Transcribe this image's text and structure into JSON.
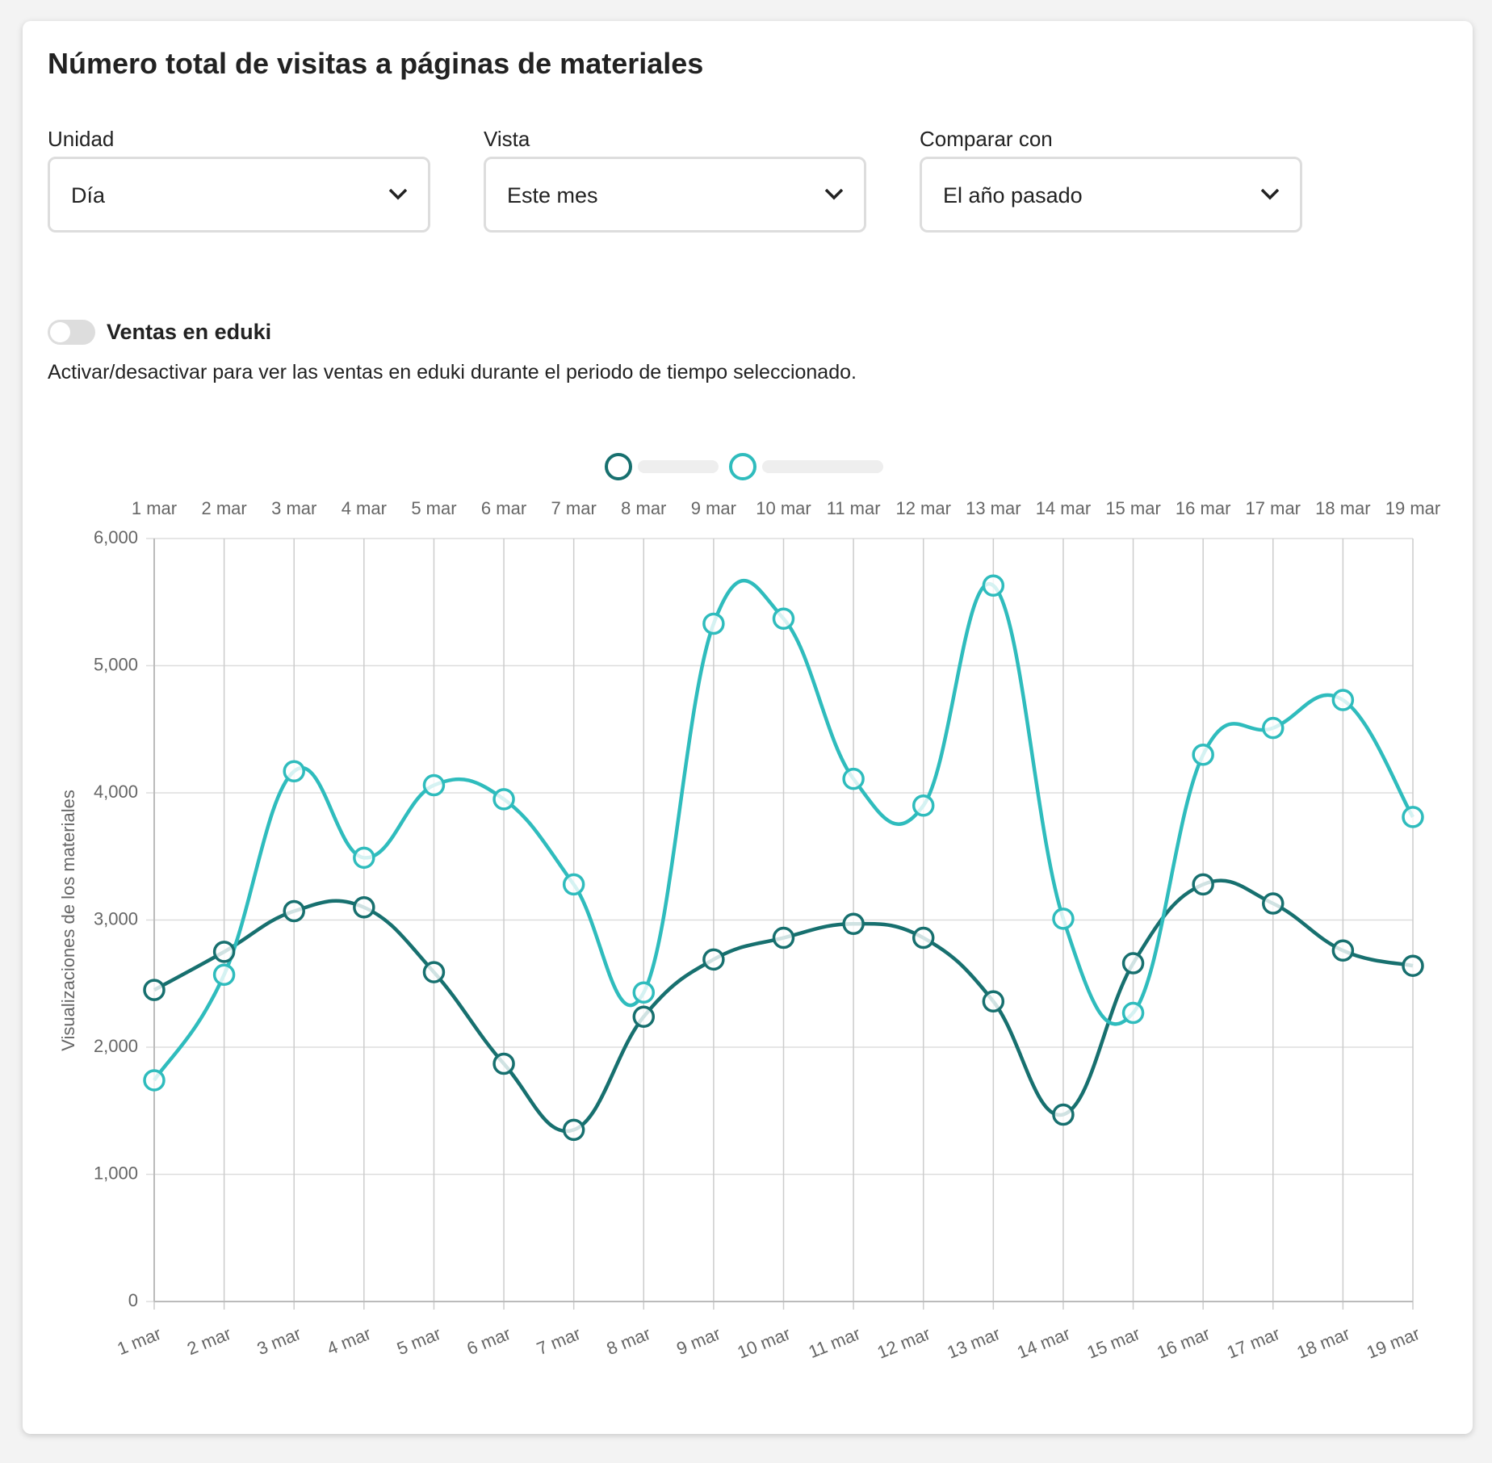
{
  "header": {
    "title": "Número total de visitas a páginas de materiales"
  },
  "filters": [
    {
      "label": "Unidad",
      "value": "Día"
    },
    {
      "label": "Vista",
      "value": "Este mes"
    },
    {
      "label": "Comparar con",
      "value": "El año pasado"
    }
  ],
  "toggle": {
    "label": "Ventas en eduki",
    "description": "Activar/desactivar para ver las ventas en eduki durante el periodo de tiempo seleccionado."
  },
  "chart_data": {
    "type": "line",
    "y_label": "Visualizaciones de los materiales",
    "categories": [
      "1 mar",
      "2 mar",
      "3 mar",
      "4 mar",
      "5 mar",
      "6 mar",
      "7 mar",
      "8 mar",
      "9 mar",
      "10 mar",
      "11 mar",
      "12 mar",
      "13 mar",
      "14 mar",
      "15 mar",
      "16 mar",
      "17 mar",
      "18 mar",
      "19 mar"
    ],
    "series": [
      {
        "color": "#17706f",
        "values": [
          2450,
          2750,
          3070,
          3100,
          2590,
          1870,
          1350,
          2240,
          2690,
          2860,
          2970,
          2860,
          2360,
          1470,
          2660,
          3280,
          3130,
          2760,
          2640
        ]
      },
      {
        "color": "#2fbcbd",
        "values": [
          1740,
          2570,
          4170,
          3490,
          4060,
          3950,
          3280,
          2430,
          5330,
          5370,
          4110,
          3900,
          5630,
          3010,
          2270,
          4300,
          4510,
          4730,
          3810
        ]
      }
    ],
    "ylim": [
      0,
      6000
    ],
    "yticks": [
      0,
      {
        "value": 1000,
        "label": "1,000"
      },
      {
        "value": 2000,
        "label": "2,000"
      },
      {
        "value": 3000,
        "label": "3,000"
      },
      {
        "value": 4000,
        "label": "4,000"
      },
      {
        "value": 5000,
        "label": "5,000"
      },
      {
        "value": 6000,
        "label": "6,000"
      }
    ],
    "grid": true
  }
}
